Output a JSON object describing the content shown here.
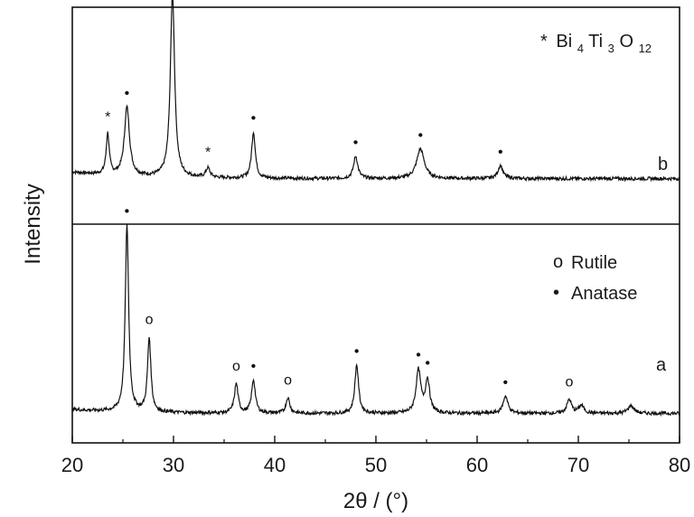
{
  "chart_data": {
    "type": "line",
    "xlabel": "2θ / (°)",
    "ylabel": "Intensity",
    "xlim": [
      20,
      80
    ],
    "x_ticks": [
      "20",
      "30",
      "40",
      "50",
      "60",
      "70",
      "80"
    ],
    "legend_b": {
      "star": "*",
      "formula_base": "Bi",
      "sub1": "4",
      "mid": "Ti",
      "sub2": "3",
      "o": "O",
      "sub3": "12"
    },
    "legend_a": [
      {
        "symbol": "o",
        "label": "Rutile"
      },
      {
        "symbol": "•",
        "label": "Anatase"
      }
    ],
    "series": [
      {
        "name": "b",
        "baseline": 0.07,
        "peaks": [
          {
            "x": 23.5,
            "h": 0.22,
            "w": 0.18,
            "marker": "*"
          },
          {
            "x": 25.4,
            "h": 0.37,
            "w": 0.3,
            "marker": "•"
          },
          {
            "x": 29.9,
            "h": 1.0,
            "w": 0.25,
            "marker": "*"
          },
          {
            "x": 33.4,
            "h": 0.05,
            "w": 0.25,
            "marker": "*"
          },
          {
            "x": 37.9,
            "h": 0.25,
            "w": 0.22,
            "marker": "•"
          },
          {
            "x": 48.0,
            "h": 0.12,
            "w": 0.25,
            "marker": "•"
          },
          {
            "x": 54.4,
            "h": 0.16,
            "w": 0.45,
            "marker": "•"
          },
          {
            "x": 62.3,
            "h": 0.07,
            "w": 0.3,
            "marker": "•"
          }
        ]
      },
      {
        "name": "a",
        "baseline": 0.04,
        "peaks": [
          {
            "x": 25.4,
            "h": 0.96,
            "w": 0.2,
            "marker": "•"
          },
          {
            "x": 27.6,
            "h": 0.38,
            "w": 0.2,
            "marker": "o"
          },
          {
            "x": 36.2,
            "h": 0.15,
            "w": 0.22,
            "marker": "o"
          },
          {
            "x": 37.9,
            "h": 0.17,
            "w": 0.22,
            "marker": "•"
          },
          {
            "x": 41.3,
            "h": 0.08,
            "w": 0.22,
            "marker": "o"
          },
          {
            "x": 48.1,
            "h": 0.25,
            "w": 0.22,
            "marker": "•"
          },
          {
            "x": 54.2,
            "h": 0.22,
            "w": 0.28,
            "marker": "•"
          },
          {
            "x": 55.1,
            "h": 0.17,
            "w": 0.25,
            "marker": "•"
          },
          {
            "x": 62.8,
            "h": 0.09,
            "w": 0.28,
            "marker": "•"
          },
          {
            "x": 69.1,
            "h": 0.07,
            "w": 0.28,
            "marker": "o"
          },
          {
            "x": 70.3,
            "h": 0.04,
            "w": 0.3
          },
          {
            "x": 75.2,
            "h": 0.04,
            "w": 0.35
          }
        ]
      }
    ]
  }
}
